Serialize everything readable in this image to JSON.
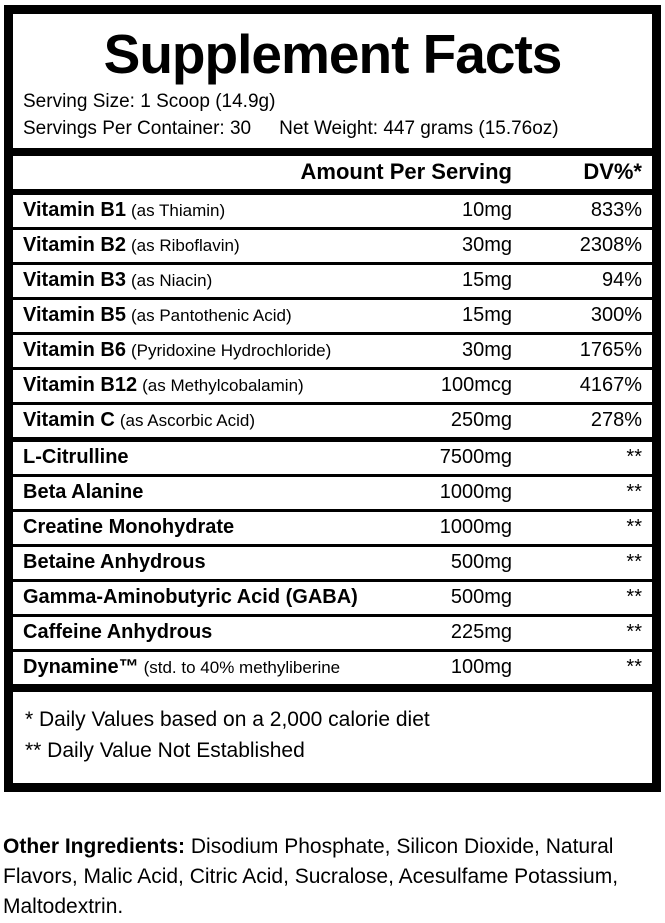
{
  "title": "Supplement Facts",
  "serving": {
    "serving_size": "Serving Size: 1 Scoop (14.9g)",
    "servings_per_container": "Servings Per Container: 30",
    "net_weight": "Net Weight: 447 grams (15.76oz)"
  },
  "table": {
    "header": {
      "amount": "Amount Per Serving",
      "dv": "DV%*"
    },
    "rows": [
      {
        "name": "Vitamin B1",
        "detail": "(as Thiamin)",
        "amount": "10mg",
        "dv": "833%",
        "group": "vitamins"
      },
      {
        "name": "Vitamin B2",
        "detail": "(as Riboflavin)",
        "amount": "30mg",
        "dv": "2308%",
        "group": "vitamins"
      },
      {
        "name": "Vitamin B3",
        "detail": "(as Niacin)",
        "amount": "15mg",
        "dv": "94%",
        "group": "vitamins"
      },
      {
        "name": "Vitamin B5",
        "detail": "(as Pantothenic Acid)",
        "amount": "15mg",
        "dv": "300%",
        "group": "vitamins"
      },
      {
        "name": "Vitamin B6",
        "detail": "(Pyridoxine Hydrochloride)",
        "amount": "30mg",
        "dv": "1765%",
        "group": "vitamins"
      },
      {
        "name": "Vitamin B12",
        "detail": "(as Methylcobalamin)",
        "amount": "100mcg",
        "dv": "4167%",
        "group": "vitamins"
      },
      {
        "name": "Vitamin C",
        "detail": "(as Ascorbic Acid)",
        "amount": "250mg",
        "dv": "278%",
        "group": "vitamins"
      },
      {
        "name": "L-Citrulline",
        "detail": "",
        "amount": "7500mg",
        "dv": "**",
        "group": "actives"
      },
      {
        "name": "Beta Alanine",
        "detail": "",
        "amount": "1000mg",
        "dv": "**",
        "group": "actives"
      },
      {
        "name": "Creatine Monohydrate",
        "detail": "",
        "amount": "1000mg",
        "dv": "**",
        "group": "actives"
      },
      {
        "name": "Betaine Anhydrous",
        "detail": "",
        "amount": "500mg",
        "dv": "**",
        "group": "actives"
      },
      {
        "name": "Gamma-Aminobutyric Acid (GABA)",
        "detail": "",
        "amount": "500mg",
        "dv": "**",
        "group": "actives"
      },
      {
        "name": "Caffeine Anhydrous",
        "detail": "",
        "amount": "225mg",
        "dv": "**",
        "group": "actives"
      },
      {
        "name": "Dynamine™",
        "detail": "(std. to 40% methyliberine",
        "amount": "100mg",
        "dv": "**",
        "group": "actives"
      }
    ]
  },
  "footnotes": [
    "* Daily Values based on a 2,000 calorie diet",
    "** Daily Value Not Established"
  ],
  "other_ingredients": {
    "label": "Other Ingredients:",
    "text": "Disodium Phosphate, Silicon Dioxide, Natural Flavors, Malic Acid, Citric Acid, Sucralose, Acesulfame Potassium, Maltodextrin."
  },
  "colors": {
    "text": "#000000",
    "background": "#ffffff",
    "border": "#000000"
  }
}
